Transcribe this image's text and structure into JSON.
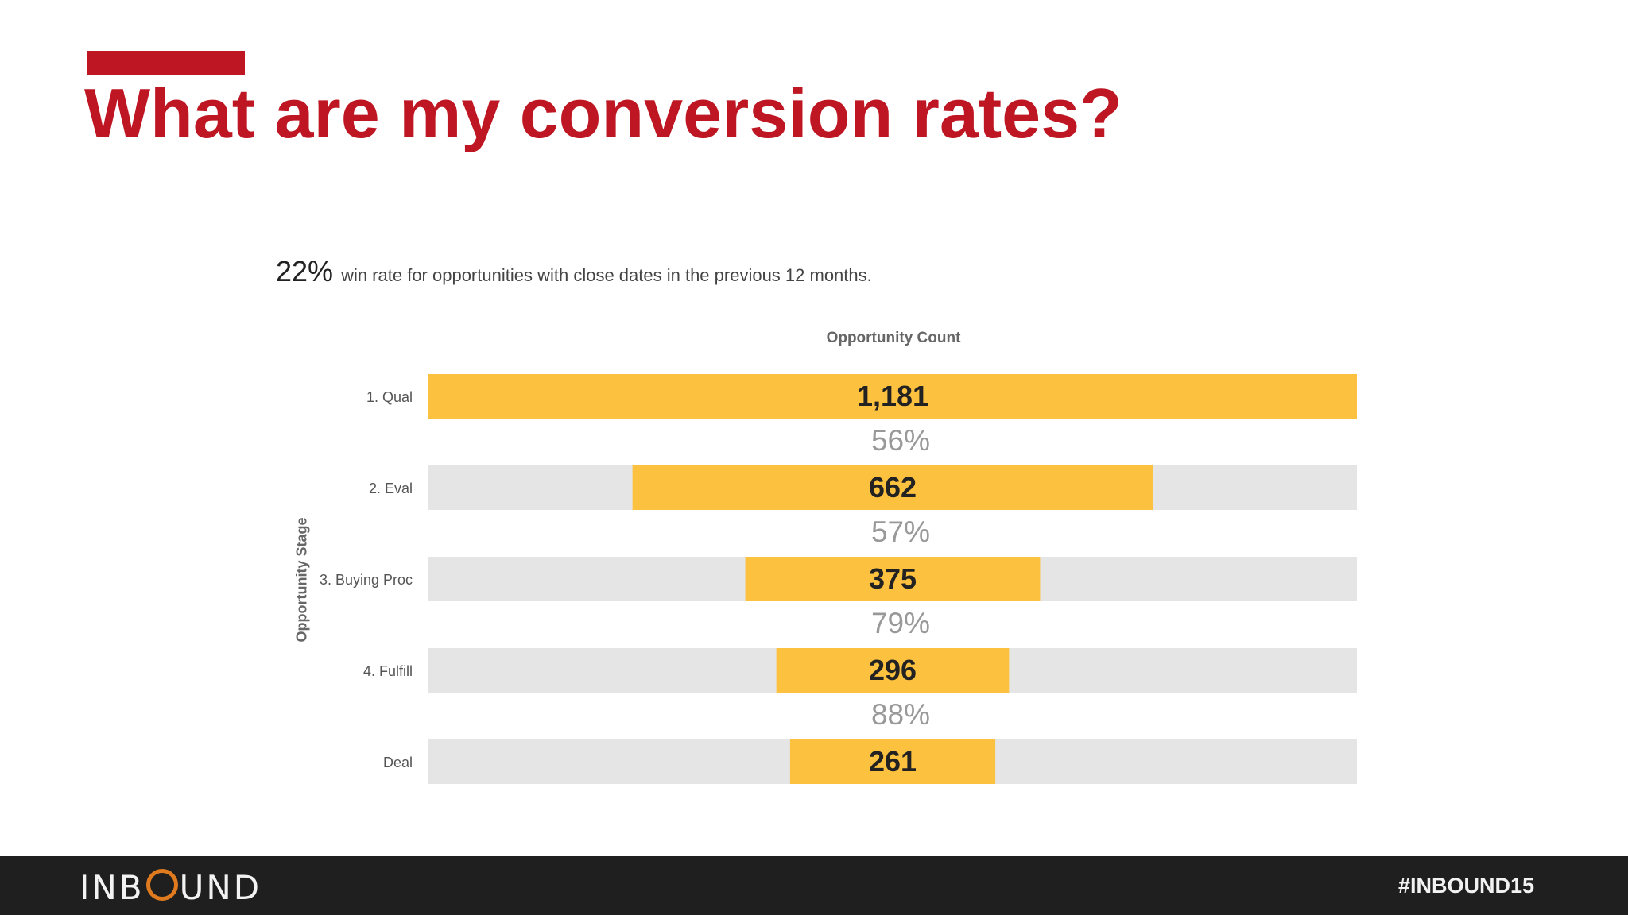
{
  "slide": {
    "title": "What are my conversion rates?"
  },
  "headline": {
    "value": "22%",
    "text": "win rate for opportunities with close dates in the previous 12 months."
  },
  "footer": {
    "logo_left": "INB",
    "logo_right": "UND",
    "hashtag": "#INBOUND15"
  },
  "colors": {
    "accent": "#be1622",
    "bar": "#fdc140",
    "track": "#e5e5e5",
    "footer": "#1f1f1f"
  },
  "chart_data": {
    "type": "bar",
    "orientation": "horizontal-funnel",
    "xlabel": "Opportunity Count",
    "ylabel": "Opportunity Stage",
    "categories": [
      "1. Qual",
      "2. Eval",
      "3. Buying Proc",
      "4. Fulfill",
      "Deal"
    ],
    "values": [
      1181,
      662,
      375,
      296,
      261
    ],
    "value_labels": [
      "1,181",
      "662",
      "375",
      "296",
      "261"
    ],
    "conversion_labels": [
      "56%",
      "57%",
      "79%",
      "88%"
    ],
    "xlim": [
      0,
      1181
    ]
  }
}
